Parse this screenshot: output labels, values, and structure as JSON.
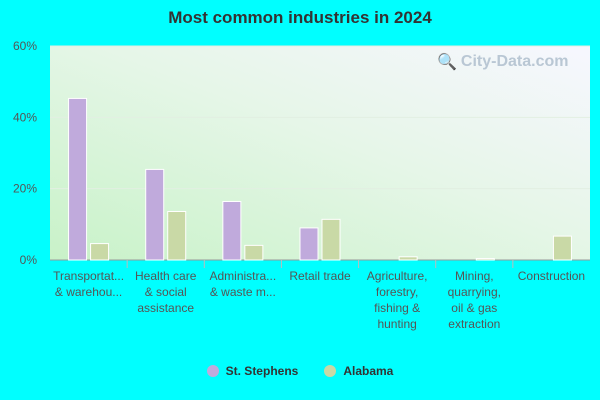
{
  "chart_data": {
    "type": "bar",
    "title": "Most common industries in 2024",
    "categories": [
      [
        "Transportat...",
        "& warehou..."
      ],
      [
        "Health care",
        "& social",
        "assistance"
      ],
      [
        "Administra...",
        "& waste m..."
      ],
      [
        "Retail trade"
      ],
      [
        "Agriculture,",
        "forestry,",
        "fishing &",
        "hunting"
      ],
      [
        "Mining,",
        "quarrying,",
        "oil & gas",
        "extraction"
      ],
      [
        "Construction"
      ]
    ],
    "series": [
      {
        "name": "St. Stephens",
        "color": "#c0aadc",
        "values": [
          45.3,
          25.4,
          16.4,
          9.0,
          0.0,
          0.0,
          0.0
        ]
      },
      {
        "name": "Alabama",
        "color": "#c9d9a6",
        "values": [
          4.6,
          13.6,
          4.1,
          11.4,
          0.9,
          0.4,
          6.7
        ]
      }
    ],
    "ylim": [
      0,
      60
    ],
    "yticks": [
      "0%",
      "20%",
      "40%",
      "60%"
    ],
    "grid": true,
    "legend": "bottom-center"
  },
  "watermark": {
    "text": "City-Data.com"
  }
}
